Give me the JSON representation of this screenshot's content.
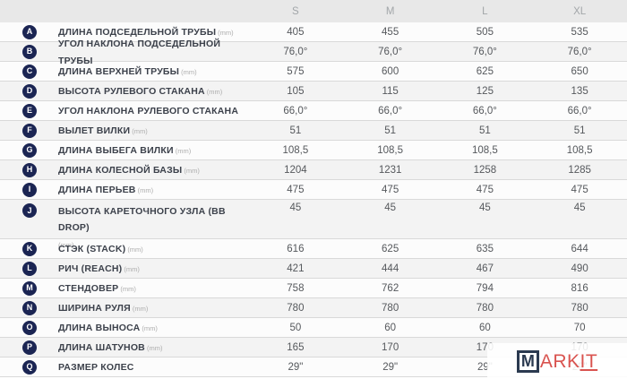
{
  "table": {
    "size_headers": [
      "S",
      "M",
      "L",
      "XL"
    ],
    "rows": [
      {
        "letter": "A",
        "label": "ДЛИНА ПОДСЕДЕЛЬНОЙ ТРУБЫ",
        "unit": "(mm)",
        "values": [
          "405",
          "455",
          "505",
          "535"
        ]
      },
      {
        "letter": "B",
        "label": "УГОЛ НАКЛОНА ПОДСЕДЕЛЬНОЙ ТРУБЫ",
        "unit": "",
        "values": [
          "76,0°",
          "76,0°",
          "76,0°",
          "76,0°"
        ]
      },
      {
        "letter": "C",
        "label": "ДЛИНА ВЕРХНЕЙ ТРУБЫ",
        "unit": "(mm)",
        "values": [
          "575",
          "600",
          "625",
          "650"
        ]
      },
      {
        "letter": "D",
        "label": "ВЫСОТА РУЛЕВОГО СТАКАНА",
        "unit": "(mm)",
        "values": [
          "105",
          "115",
          "125",
          "135"
        ]
      },
      {
        "letter": "E",
        "label": "УГОЛ НАКЛОНА РУЛЕВОГО СТАКАНА",
        "unit": "",
        "values": [
          "66,0°",
          "66,0°",
          "66,0°",
          "66,0°"
        ]
      },
      {
        "letter": "F",
        "label": "ВЫЛЕТ ВИЛКИ",
        "unit": "(mm)",
        "values": [
          "51",
          "51",
          "51",
          "51"
        ]
      },
      {
        "letter": "G",
        "label": "ДЛИНА ВЫБЕГА ВИЛКИ",
        "unit": "(mm)",
        "values": [
          "108,5",
          "108,5",
          "108,5",
          "108,5"
        ]
      },
      {
        "letter": "H",
        "label": "ДЛИНА КОЛЕСНОЙ БАЗЫ",
        "unit": "(mm)",
        "values": [
          "1204",
          "1231",
          "1258",
          "1285"
        ]
      },
      {
        "letter": "I",
        "label": "ДЛИНА ПЕРЬЕВ",
        "unit": "(mm)",
        "values": [
          "475",
          "475",
          "475",
          "475"
        ]
      },
      {
        "letter": "J",
        "label": "ВЫСОТА КАРЕТОЧНОГО УЗЛА (BB DROP)",
        "unit": "(mm)",
        "values": [
          "45",
          "45",
          "45",
          "45"
        ]
      },
      {
        "letter": "K",
        "label": "СТЭК (STACK)",
        "unit": "(mm)",
        "values": [
          "616",
          "625",
          "635",
          "644"
        ]
      },
      {
        "letter": "L",
        "label": "РИЧ (REACH)",
        "unit": "(mm)",
        "values": [
          "421",
          "444",
          "467",
          "490"
        ]
      },
      {
        "letter": "M",
        "label": "СТЕНДОВЕР",
        "unit": "(mm)",
        "values": [
          "758",
          "762",
          "794",
          "816"
        ]
      },
      {
        "letter": "N",
        "label": "ШИРИНА РУЛЯ",
        "unit": "(mm)",
        "values": [
          "780",
          "780",
          "780",
          "780"
        ]
      },
      {
        "letter": "O",
        "label": "ДЛИНА ВЫНОСА",
        "unit": "(mm)",
        "values": [
          "50",
          "60",
          "60",
          "70"
        ]
      },
      {
        "letter": "P",
        "label": "ДЛИНА ШАТУНОВ",
        "unit": "(mm)",
        "values": [
          "165",
          "170",
          "170",
          "170"
        ]
      },
      {
        "letter": "Q",
        "label": "РАЗМЕР КОЛЕС",
        "unit": "",
        "values": [
          "29\"",
          "29\"",
          "29\"",
          "29\""
        ]
      }
    ]
  },
  "watermark": {
    "boxed_letter": "M",
    "text_plain": "ARK",
    "text_underlined": "IT"
  },
  "colors": {
    "badge-navy": "#1b2553",
    "header-bg": "#e8e8e8",
    "header-text": "#a2a6a9",
    "row-alt-bg": "#f3f3f3",
    "row-line": "#d9d9d9",
    "label-color": "#3c414b",
    "value-color": "#55585c",
    "wm-red": "#d9534f",
    "wm-navy": "#2b3a50"
  }
}
